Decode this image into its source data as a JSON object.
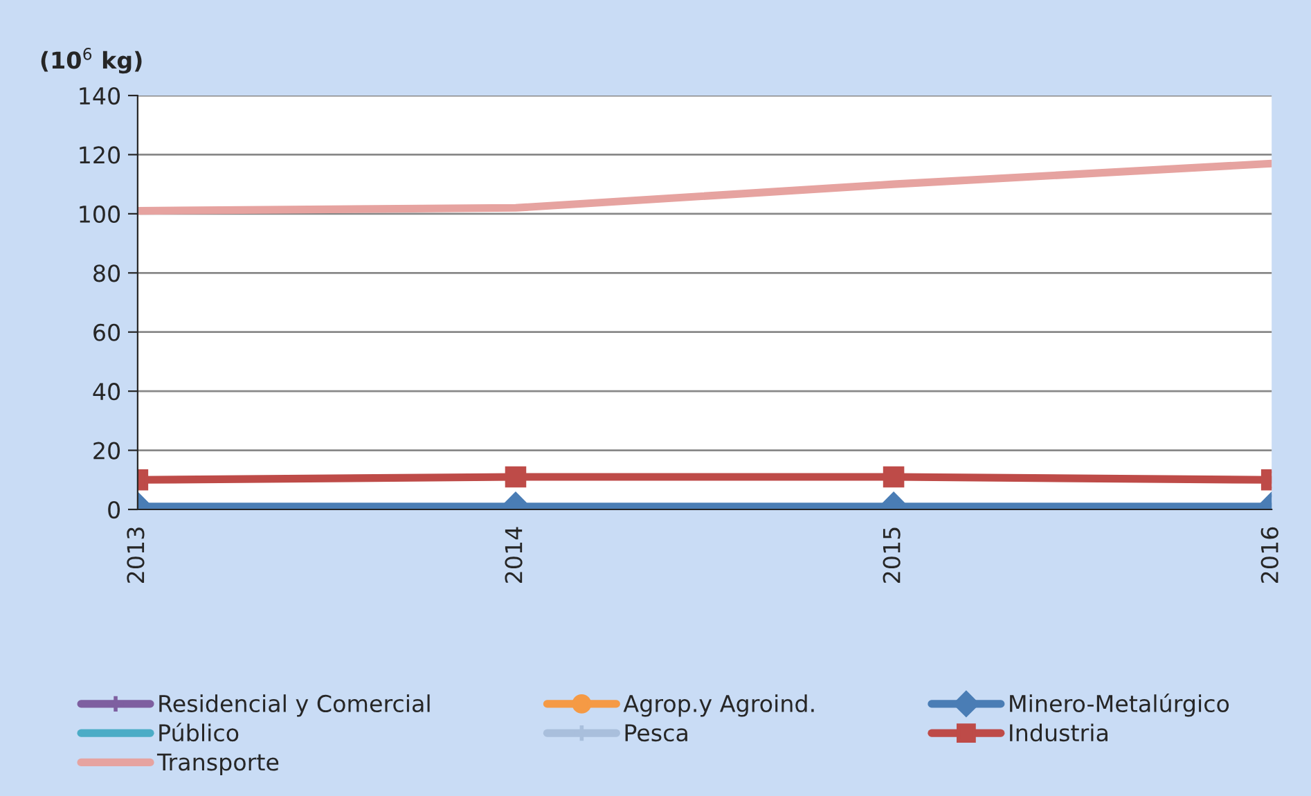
{
  "chart_data": {
    "type": "line",
    "ylabel": "(10$^{6}$ kg)",
    "categories": [
      "2013",
      "2014",
      "2015",
      "2016"
    ],
    "series": [
      {
        "name": "Residencial y Comercial",
        "color": "#7e5fa0",
        "marker": "cross",
        "values": [
          null,
          null,
          null,
          null
        ]
      },
      {
        "name": "Público",
        "color": "#4bacc6",
        "marker": "none",
        "values": [
          null,
          null,
          null,
          null
        ]
      },
      {
        "name": "Transporte",
        "color": "#e6a3a0",
        "marker": "none",
        "values": [
          101,
          102,
          110,
          117
        ]
      },
      {
        "name": "Agrop.y Agroind.",
        "color": "#f59a45",
        "marker": "circle",
        "values": [
          null,
          null,
          null,
          null
        ]
      },
      {
        "name": "Pesca",
        "color": "#a9bfdc",
        "marker": "cross",
        "values": [
          null,
          null,
          null,
          null
        ]
      },
      {
        "name": "Minero-Metalúrgico",
        "color": "#4a7db5",
        "marker": "diamond",
        "values": [
          1,
          1,
          1,
          1
        ]
      },
      {
        "name": "Industria",
        "color": "#be4b48",
        "marker": "square",
        "values": [
          10,
          11,
          11,
          10
        ]
      }
    ],
    "ylim": [
      0,
      140
    ],
    "yticks": [
      0,
      20,
      40,
      60,
      80,
      100,
      120,
      140
    ],
    "grid": "y",
    "legend": "bottom"
  }
}
